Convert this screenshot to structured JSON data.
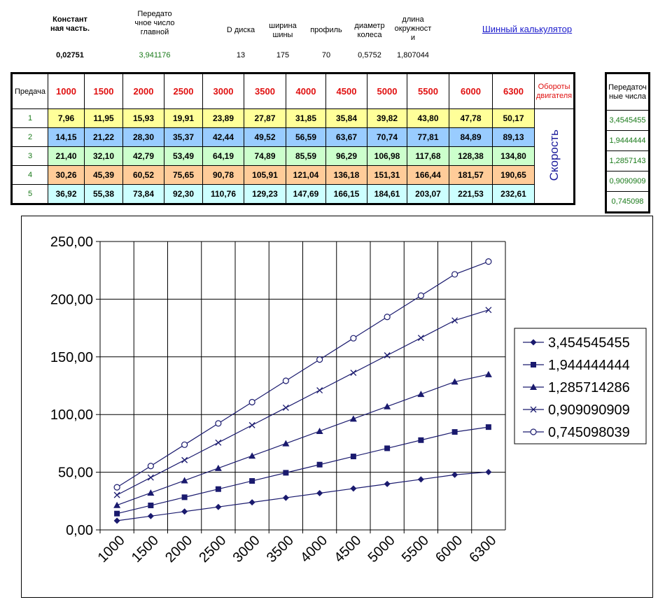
{
  "params": [
    {
      "label": "Констант ная часть.",
      "value": "0,02751",
      "bold": true,
      "green": false
    },
    {
      "label": "Передато чное число главной",
      "value": "3,941176",
      "bold": false,
      "green": true
    },
    {
      "label": "D диска",
      "value": "13",
      "bold": false,
      "green": false
    },
    {
      "label": "ширина шины",
      "value": "175",
      "bold": false,
      "green": false
    },
    {
      "label": "профиль",
      "value": "70",
      "bold": false,
      "green": false
    },
    {
      "label": "диаметр колеса",
      "value": "0,5752",
      "bold": false,
      "green": false
    },
    {
      "label": "длина окружност и",
      "value": "1,807044",
      "bold": false,
      "green": false
    }
  ],
  "calc_link": "Шинный калькулятор",
  "table": {
    "gear_header": "Предача",
    "rpm": [
      "1000",
      "1500",
      "2000",
      "2500",
      "3000",
      "3500",
      "4000",
      "4500",
      "5000",
      "5500",
      "6000",
      "6300"
    ],
    "oboroty_label": "Обороты двигателя",
    "speed_label": "Скорость",
    "rows": [
      {
        "gear": "1",
        "values": [
          "7,96",
          "11,95",
          "15,93",
          "19,91",
          "23,89",
          "27,87",
          "31,85",
          "35,84",
          "39,82",
          "43,80",
          "47,78",
          "50,17"
        ]
      },
      {
        "gear": "2",
        "values": [
          "14,15",
          "21,22",
          "28,30",
          "35,37",
          "42,44",
          "49,52",
          "56,59",
          "63,67",
          "70,74",
          "77,81",
          "84,89",
          "89,13"
        ]
      },
      {
        "gear": "3",
        "values": [
          "21,40",
          "32,10",
          "42,79",
          "53,49",
          "64,19",
          "74,89",
          "85,59",
          "96,29",
          "106,98",
          "117,68",
          "128,38",
          "134,80"
        ]
      },
      {
        "gear": "4",
        "values": [
          "30,26",
          "45,39",
          "60,52",
          "75,65",
          "90,78",
          "105,91",
          "121,04",
          "136,18",
          "151,31",
          "166,44",
          "181,57",
          "190,65"
        ]
      },
      {
        "gear": "5",
        "values": [
          "36,92",
          "55,38",
          "73,84",
          "92,30",
          "110,76",
          "129,23",
          "147,69",
          "166,15",
          "184,61",
          "203,07",
          "221,53",
          "232,61"
        ]
      }
    ]
  },
  "ratios": {
    "header": "Передаточ ные числа",
    "values": [
      "3,4545455",
      "1,9444444",
      "1,2857143",
      "0,9090909",
      "0,745098"
    ]
  },
  "chart_data": {
    "type": "line",
    "categories": [
      "1000",
      "1500",
      "2000",
      "2500",
      "3000",
      "3500",
      "4000",
      "4500",
      "5000",
      "5500",
      "6000",
      "6300"
    ],
    "ylim": [
      0,
      250
    ],
    "yticks": [
      "0,00",
      "50,00",
      "100,00",
      "150,00",
      "200,00",
      "250,00"
    ],
    "grid": true,
    "legend": "right",
    "line_color": "#1a1a6e",
    "series": [
      {
        "name": "3,454545455",
        "marker": "diamond",
        "values": [
          7.96,
          11.95,
          15.93,
          19.91,
          23.89,
          27.87,
          31.85,
          35.84,
          39.82,
          43.8,
          47.78,
          50.17
        ]
      },
      {
        "name": "1,944444444",
        "marker": "square",
        "values": [
          14.15,
          21.22,
          28.3,
          35.37,
          42.44,
          49.52,
          56.59,
          63.67,
          70.74,
          77.81,
          84.89,
          89.13
        ]
      },
      {
        "name": "1,285714286",
        "marker": "triangle",
        "values": [
          21.4,
          32.1,
          42.79,
          53.49,
          64.19,
          74.89,
          85.59,
          96.29,
          106.98,
          117.68,
          128.38,
          134.8
        ]
      },
      {
        "name": "0,909090909",
        "marker": "x",
        "values": [
          30.26,
          45.39,
          60.52,
          75.65,
          90.78,
          105.91,
          121.04,
          136.18,
          151.31,
          166.44,
          181.57,
          190.65
        ]
      },
      {
        "name": "0,745098039",
        "marker": "circle",
        "values": [
          36.92,
          55.38,
          73.84,
          92.3,
          110.76,
          129.23,
          147.69,
          166.15,
          184.61,
          203.07,
          221.53,
          232.61
        ]
      }
    ]
  }
}
